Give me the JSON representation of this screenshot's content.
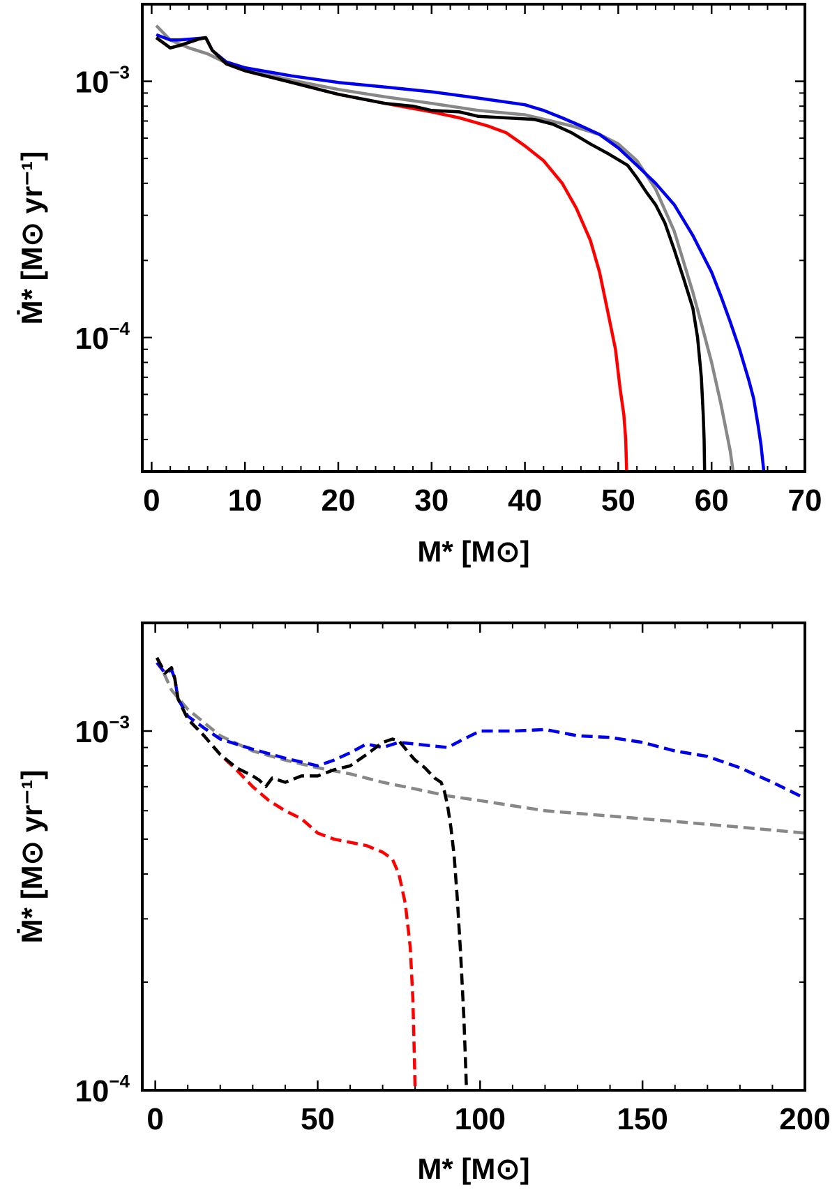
{
  "chart_data": [
    {
      "type": "line",
      "xlabel": "M* [M⊙]",
      "ylabel": "Ṁ* [M⊙ yr⁻¹]",
      "xlim": [
        -1,
        70
      ],
      "ylim": [
        3e-05,
        0.002
      ],
      "yscale": "log",
      "xticks": [
        0,
        10,
        20,
        30,
        40,
        50,
        60,
        70
      ],
      "xtick_labels": [
        "0",
        "10",
        "20",
        "30",
        "40",
        "50",
        "60",
        "70"
      ],
      "yticks": [
        0.0001,
        0.001
      ],
      "ytick_labels": [
        {
          "base": "10",
          "exp": "−4"
        },
        {
          "base": "10",
          "exp": "−3"
        }
      ],
      "series": [
        {
          "color": "#888888",
          "dash": false,
          "x": [
            0.5,
            2,
            4,
            6,
            8,
            10,
            15,
            20,
            25,
            30,
            35,
            40,
            45,
            48,
            50,
            52,
            54,
            56,
            58,
            59,
            60,
            61,
            62,
            62.3
          ],
          "y": [
            0.00165,
            0.00145,
            0.00135,
            0.00128,
            0.00118,
            0.00111,
            0.00101,
            0.00093,
            0.00087,
            0.00082,
            0.00077,
            0.00074,
            0.00067,
            0.00062,
            0.00057,
            0.00049,
            0.00038,
            0.00026,
            0.00015,
            0.00011,
            8e-05,
            5.5e-05,
            3.6e-05,
            3e-05
          ]
        },
        {
          "color": "#0000ee",
          "dash": false,
          "x": [
            0.5,
            2,
            3,
            5,
            5.8,
            6.5,
            8,
            10,
            15,
            20,
            25,
            30,
            35,
            40,
            42,
            44,
            46,
            48,
            50,
            52,
            54,
            56,
            58,
            60,
            61,
            62,
            63,
            64,
            64.5,
            65,
            65.3,
            65.6
          ],
          "y": [
            0.00152,
            0.00145,
            0.00145,
            0.00147,
            0.00148,
            0.00132,
            0.00119,
            0.00113,
            0.00105,
            0.00099,
            0.00095,
            0.00091,
            0.00086,
            0.00081,
            0.00077,
            0.00072,
            0.00067,
            0.00062,
            0.00055,
            0.00047,
            0.0004,
            0.00033,
            0.00025,
            0.00018,
            0.000145,
            0.000115,
            9e-05,
            6.8e-05,
            5.8e-05,
            4.5e-05,
            3.8e-05,
            3e-05
          ]
        },
        {
          "color": "#ff0000",
          "dash": false,
          "x": [
            0.5,
            2,
            3,
            5,
            5.8,
            6.5,
            8,
            10,
            15,
            20,
            25,
            30,
            33,
            36,
            38,
            40,
            42,
            44,
            45.5,
            47,
            48,
            49,
            49.7,
            50.2,
            50.6,
            50.8,
            50.9
          ],
          "y": [
            0.00148,
            0.00135,
            0.00138,
            0.00146,
            0.00148,
            0.00132,
            0.00117,
            0.0011,
            0.00099,
            0.00089,
            0.00082,
            0.00076,
            0.00072,
            0.00067,
            0.00063,
            0.00056,
            0.00049,
            0.0004,
            0.00032,
            0.00024,
            0.00018,
            0.00012,
            9e-05,
            6.3e-05,
            5e-05,
            4e-05,
            3e-05
          ]
        },
        {
          "color": "#000000",
          "dash": false,
          "x": [
            0.5,
            2,
            3,
            5,
            5.8,
            6.5,
            8,
            10,
            15,
            20,
            25,
            28,
            30,
            33,
            35,
            38,
            41,
            43,
            45,
            47,
            49,
            51,
            52,
            53,
            54,
            55,
            56,
            57,
            58,
            58.5,
            58.9,
            59.1,
            59.2,
            59.25
          ],
          "y": [
            0.00148,
            0.00135,
            0.00138,
            0.00146,
            0.00148,
            0.00132,
            0.00117,
            0.0011,
            0.00099,
            0.00089,
            0.00082,
            0.0008,
            0.00077,
            0.00076,
            0.00073,
            0.00072,
            0.00071,
            0.00068,
            0.00063,
            0.00057,
            0.00052,
            0.00047,
            0.00042,
            0.00037,
            0.00033,
            0.00028,
            0.00022,
            0.00017,
            0.00013,
            0.0001,
            7e-05,
            5e-05,
            4e-05,
            3e-05
          ]
        }
      ]
    },
    {
      "type": "line",
      "xlabel": "M* [M⊙]",
      "ylabel": "Ṁ* [M⊙ yr⁻¹]",
      "xlim": [
        -4,
        200
      ],
      "ylim": [
        0.0001,
        0.002
      ],
      "yscale": "log",
      "xticks": [
        0,
        50,
        100,
        150,
        200
      ],
      "xtick_labels": [
        "0",
        "50",
        "100",
        "150",
        "200"
      ],
      "yticks": [
        0.0001,
        0.001
      ],
      "ytick_labels": [
        {
          "base": "10",
          "exp": "−4"
        },
        {
          "base": "10",
          "exp": "−3"
        }
      ],
      "series": [
        {
          "color": "#888888",
          "dash": true,
          "x": [
            0.5,
            5,
            10,
            20,
            30,
            40,
            50,
            60,
            70,
            80,
            90,
            100,
            120,
            140,
            160,
            180,
            200
          ],
          "y": [
            0.0016,
            0.0013,
            0.00115,
            0.00097,
            0.00088,
            0.00083,
            0.00079,
            0.00076,
            0.00072,
            0.00069,
            0.00066,
            0.00064,
            0.0006,
            0.00058,
            0.00056,
            0.00054,
            0.00052
          ]
        },
        {
          "color": "#0000ee",
          "dash": true,
          "x": [
            0.5,
            3,
            5,
            6,
            7,
            10,
            15,
            20,
            30,
            40,
            50,
            55,
            60,
            65,
            70,
            75,
            80,
            90,
            95,
            100,
            110,
            120,
            130,
            140,
            150,
            160,
            170,
            180,
            190,
            200
          ],
          "y": [
            0.00155,
            0.00145,
            0.00148,
            0.0014,
            0.00123,
            0.0011,
            0.00102,
            0.00095,
            0.00089,
            0.00084,
            0.0008,
            0.00083,
            0.00087,
            0.00092,
            0.0009,
            0.00093,
            0.00092,
            0.0009,
            0.00095,
            0.001,
            0.001,
            0.00101,
            0.00097,
            0.00096,
            0.00093,
            0.00088,
            0.00085,
            0.00079,
            0.00072,
            0.00065
          ]
        },
        {
          "color": "#ff0000",
          "dash": true,
          "x": [
            0.5,
            3,
            5,
            6,
            7,
            10,
            15,
            20,
            25,
            30,
            35,
            40,
            45,
            50,
            55,
            60,
            65,
            70,
            73,
            75,
            77,
            78.5,
            79.3,
            79.7,
            80
          ],
          "y": [
            0.0016,
            0.00145,
            0.0015,
            0.0014,
            0.00123,
            0.00108,
            0.00097,
            0.00086,
            0.00078,
            0.0007,
            0.00064,
            0.0006,
            0.00057,
            0.00052,
            0.0005,
            0.00049,
            0.00048,
            0.00046,
            0.00044,
            0.0004,
            0.00033,
            0.00025,
            0.00018,
            0.00013,
            0.0001
          ]
        },
        {
          "color": "#000000",
          "dash": true,
          "x": [
            0.5,
            3,
            5,
            6,
            7,
            10,
            15,
            20,
            25,
            30,
            32,
            34,
            36,
            40,
            45,
            50,
            55,
            60,
            65,
            70,
            73,
            75,
            78,
            80,
            83,
            86,
            88,
            89,
            90,
            91,
            92,
            93,
            94,
            95,
            95.5,
            95.8
          ],
          "y": [
            0.0016,
            0.00145,
            0.0015,
            0.0014,
            0.00123,
            0.00108,
            0.00097,
            0.00086,
            0.00079,
            0.00075,
            0.00073,
            0.0007,
            0.00074,
            0.00072,
            0.00075,
            0.00075,
            0.00078,
            0.0008,
            0.00086,
            0.00093,
            0.00095,
            0.00094,
            0.00087,
            0.00083,
            0.00079,
            0.00074,
            0.00072,
            0.00068,
            0.00062,
            0.00054,
            0.00045,
            0.00034,
            0.00024,
            0.00016,
            0.00012,
            0.0001
          ]
        }
      ]
    }
  ]
}
